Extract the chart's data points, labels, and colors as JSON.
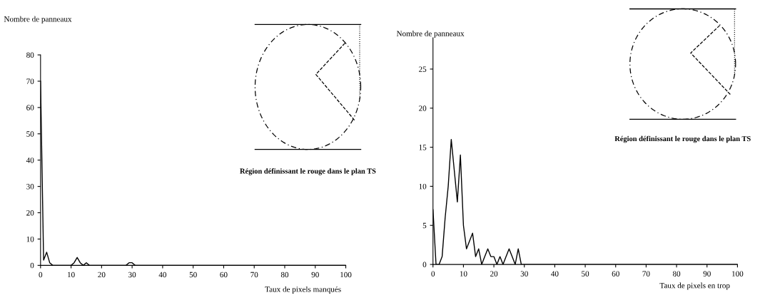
{
  "chart_data": [
    {
      "type": "line",
      "xlabel": "Taux de pixels manqués",
      "ylabel": "Nombre de panneaux",
      "annotations": [
        "Région définissant le rouge dans le plan TS"
      ],
      "x": [
        0,
        1,
        2,
        3,
        4,
        5,
        6,
        7,
        8,
        9,
        10,
        11,
        12,
        13,
        14,
        15,
        16,
        17,
        18,
        19,
        20,
        22,
        24,
        26,
        28,
        29,
        30,
        31,
        32,
        35,
        40,
        45,
        50,
        55,
        60,
        70,
        80,
        90,
        100
      ],
      "series": [
        {
          "color": "#000000",
          "values": [
            70,
            2,
            5,
            1,
            0,
            0,
            0,
            0,
            0,
            0,
            0,
            1,
            3,
            1,
            0,
            1,
            0,
            0,
            0,
            0,
            0,
            0,
            0,
            0,
            0,
            1,
            1,
            0,
            0,
            0,
            0,
            0,
            0,
            0,
            0,
            0,
            0,
            0,
            0
          ]
        }
      ],
      "xlim": [
        0,
        100
      ],
      "ylim": [
        0,
        80
      ],
      "xticks": [
        0,
        10,
        20,
        30,
        40,
        50,
        60,
        70,
        80,
        90,
        100
      ],
      "yticks": [
        0,
        10,
        20,
        30,
        40,
        50,
        60,
        70,
        80
      ]
    },
    {
      "type": "line",
      "xlabel": "Taux de pixels en trop",
      "ylabel": "Nombre de panneaux",
      "annotations": [
        "Région définissant le rouge dans le plan TS"
      ],
      "x": [
        0,
        1,
        2,
        3,
        4,
        5,
        6,
        7,
        8,
        9,
        10,
        11,
        12,
        13,
        14,
        15,
        16,
        17,
        18,
        19,
        20,
        21,
        22,
        23,
        24,
        25,
        26,
        27,
        28,
        29,
        30,
        40,
        50,
        60,
        70,
        80,
        90,
        100
      ],
      "series": [
        {
          "color": "#000000",
          "values": [
            7,
            0,
            0,
            1,
            6,
            10,
            16,
            12,
            8,
            14,
            5,
            2,
            3,
            4,
            1,
            2,
            0,
            1,
            2,
            1,
            1,
            0,
            1,
            0,
            1,
            2,
            1,
            0,
            2,
            0,
            0,
            0,
            0,
            0,
            0,
            0,
            0,
            0
          ]
        }
      ],
      "xlim": [
        0,
        100
      ],
      "ylim": [
        0,
        29
      ],
      "xticks": [
        0,
        10,
        20,
        30,
        40,
        50,
        60,
        70,
        80,
        90,
        100
      ],
      "yticks": [
        0,
        5,
        10,
        15,
        20,
        25
      ]
    }
  ]
}
